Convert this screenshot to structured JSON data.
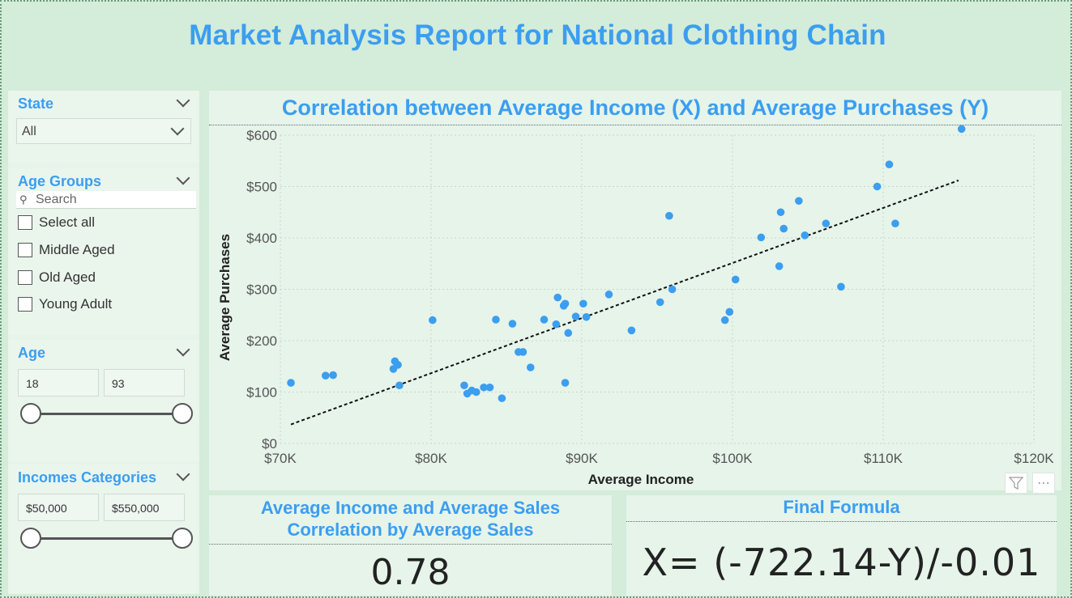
{
  "report": {
    "title": "Market Analysis Report for National Clothing Chain"
  },
  "filters": {
    "state": {
      "title": "State",
      "selected": "All"
    },
    "age_groups": {
      "title": "Age Groups",
      "search_placeholder": "Search",
      "options": [
        "Select all",
        "Middle Aged",
        "Old Aged",
        "Young Adult"
      ]
    },
    "age": {
      "title": "Age",
      "min": "18",
      "max": "93"
    },
    "income_categories": {
      "title": "Incomes Categories",
      "min": "$50,000",
      "max": "$550,000"
    }
  },
  "scatter_card": {
    "title": "Correlation between Average Income (X) and Average Purchases (Y)"
  },
  "kpi": {
    "title_line1": "Average Income and Average Sales",
    "title_line2": "Correlation by Average Sales",
    "value": "0.78"
  },
  "formula": {
    "title": "Final Formula",
    "value": "X= (-722.14-Y)/-0.01"
  },
  "icons": {
    "filter": "filter-icon",
    "more": "more-options-icon",
    "search": "search-icon",
    "dropdown": "chevron-down-icon"
  },
  "colors": {
    "accent": "#3b9ef0",
    "points": "#3b9ef0",
    "trend": "#111111",
    "background": "#d4ecda"
  },
  "chart_data": {
    "type": "scatter",
    "title": "",
    "xlabel": "Average Income",
    "ylabel": "Average Purchases",
    "xlim": [
      70000,
      120000
    ],
    "ylim": [
      0,
      600
    ],
    "x_ticks": [
      "$70K",
      "$80K",
      "$90K",
      "$100K",
      "$110K",
      "$120K"
    ],
    "y_ticks": [
      "$0",
      "$100",
      "$200",
      "$300",
      "$400",
      "$500",
      "$600"
    ],
    "x_tick_values": [
      70000,
      80000,
      90000,
      100000,
      110000,
      120000
    ],
    "y_tick_values": [
      0,
      100,
      200,
      300,
      400,
      500,
      600
    ],
    "grid": true,
    "trendline": {
      "style": "dotted",
      "from": [
        70700,
        37
      ],
      "to": [
        115000,
        512
      ]
    },
    "points": [
      [
        70700,
        118
      ],
      [
        73000,
        132
      ],
      [
        73500,
        133
      ],
      [
        77500,
        145
      ],
      [
        77600,
        160
      ],
      [
        77800,
        153
      ],
      [
        77900,
        113
      ],
      [
        80100,
        240
      ],
      [
        82200,
        113
      ],
      [
        82400,
        97
      ],
      [
        82700,
        103
      ],
      [
        83000,
        100
      ],
      [
        83500,
        109
      ],
      [
        83900,
        109
      ],
      [
        84300,
        241
      ],
      [
        84700,
        88
      ],
      [
        85400,
        233
      ],
      [
        85800,
        178
      ],
      [
        86100,
        178
      ],
      [
        86600,
        148
      ],
      [
        87500,
        241
      ],
      [
        88300,
        232
      ],
      [
        88400,
        284
      ],
      [
        88800,
        268
      ],
      [
        88900,
        272
      ],
      [
        88900,
        118
      ],
      [
        89100,
        215
      ],
      [
        89600,
        247
      ],
      [
        90100,
        272
      ],
      [
        90300,
        246
      ],
      [
        91800,
        290
      ],
      [
        93300,
        220
      ],
      [
        95200,
        275
      ],
      [
        95800,
        443
      ],
      [
        96000,
        300
      ],
      [
        99500,
        240
      ],
      [
        99800,
        256
      ],
      [
        100200,
        319
      ],
      [
        101900,
        401
      ],
      [
        103100,
        345
      ],
      [
        103200,
        450
      ],
      [
        103400,
        418
      ],
      [
        104400,
        472
      ],
      [
        104800,
        405
      ],
      [
        106200,
        428
      ],
      [
        107200,
        305
      ],
      [
        109600,
        500
      ],
      [
        110400,
        543
      ],
      [
        110800,
        428
      ],
      [
        115200,
        612
      ]
    ]
  }
}
